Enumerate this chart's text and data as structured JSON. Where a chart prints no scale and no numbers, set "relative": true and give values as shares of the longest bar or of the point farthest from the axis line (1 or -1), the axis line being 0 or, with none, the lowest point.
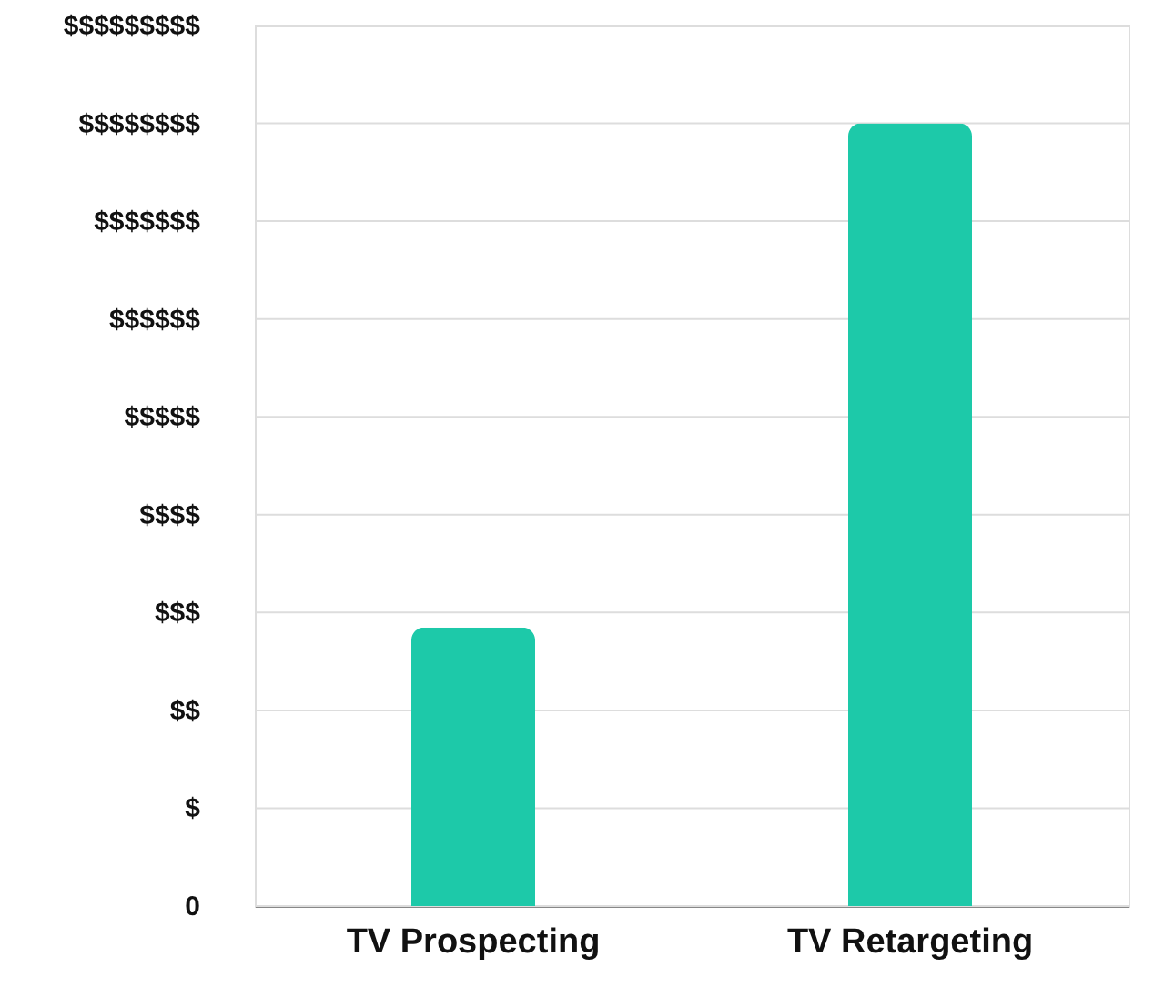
{
  "chart_data": {
    "type": "bar",
    "categories": [
      "TV Prospecting",
      "TV Retargeting"
    ],
    "values": [
      0.356,
      1
    ],
    "color": "#1dc9a9",
    "relative": true,
    "annotations": [
      "0",
      "$",
      "$$",
      "$$$",
      "$$$$",
      "$$$$$",
      "$$$$$$",
      "$$$$$$$",
      "$$$$$$$$",
      "$$$$$$$$$"
    ],
    "grid": "y"
  }
}
